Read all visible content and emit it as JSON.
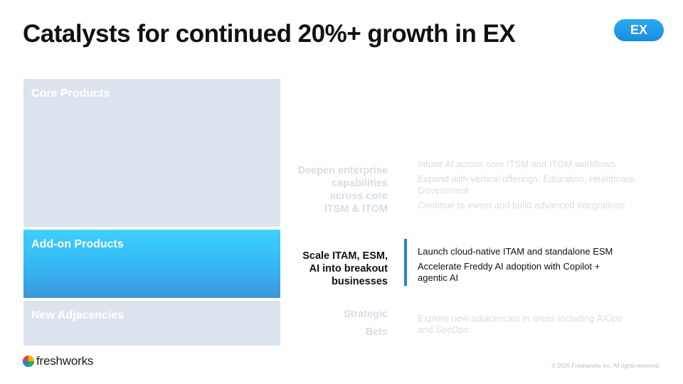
{
  "slide": {
    "title": "Catalysts for continued 20%+ growth in EX",
    "badge": "EX"
  },
  "blocks": {
    "core": "Core Products",
    "addon": "Add-on Products",
    "adjacencies": "New Adjacencies"
  },
  "rows": [
    {
      "label_lines": [
        "Deepen enterprise",
        "capabilities",
        "across core",
        "ITSM & ITOM"
      ],
      "bullets": [
        "Infuse AI across core ITSM and ITOM workflows",
        "Expand with vertical offerings: Education, Healthcare, Government",
        "Continue to invest and build advanced integrations"
      ]
    },
    {
      "label_lines": [
        "Scale ITAM, ESM,",
        "AI into breakout",
        "businesses"
      ],
      "bullets": [
        "Launch cloud-native ITAM and standalone ESM",
        "Accelerate Freddy AI adoption with Copilot + agentic AI"
      ]
    },
    {
      "label_lines": [
        "Strategic",
        "Bets"
      ],
      "bullets": [
        "Explore new adjacencies in areas including AIOps and SecOps"
      ]
    }
  ],
  "footer": {
    "brand": "freshworks",
    "copyright": "© 2025 Freshworks Inc. All rights reserved."
  },
  "colors": {
    "accent": "#1f86cc",
    "highlight": "#36b6f2",
    "muted_block": "#dde3ec"
  }
}
